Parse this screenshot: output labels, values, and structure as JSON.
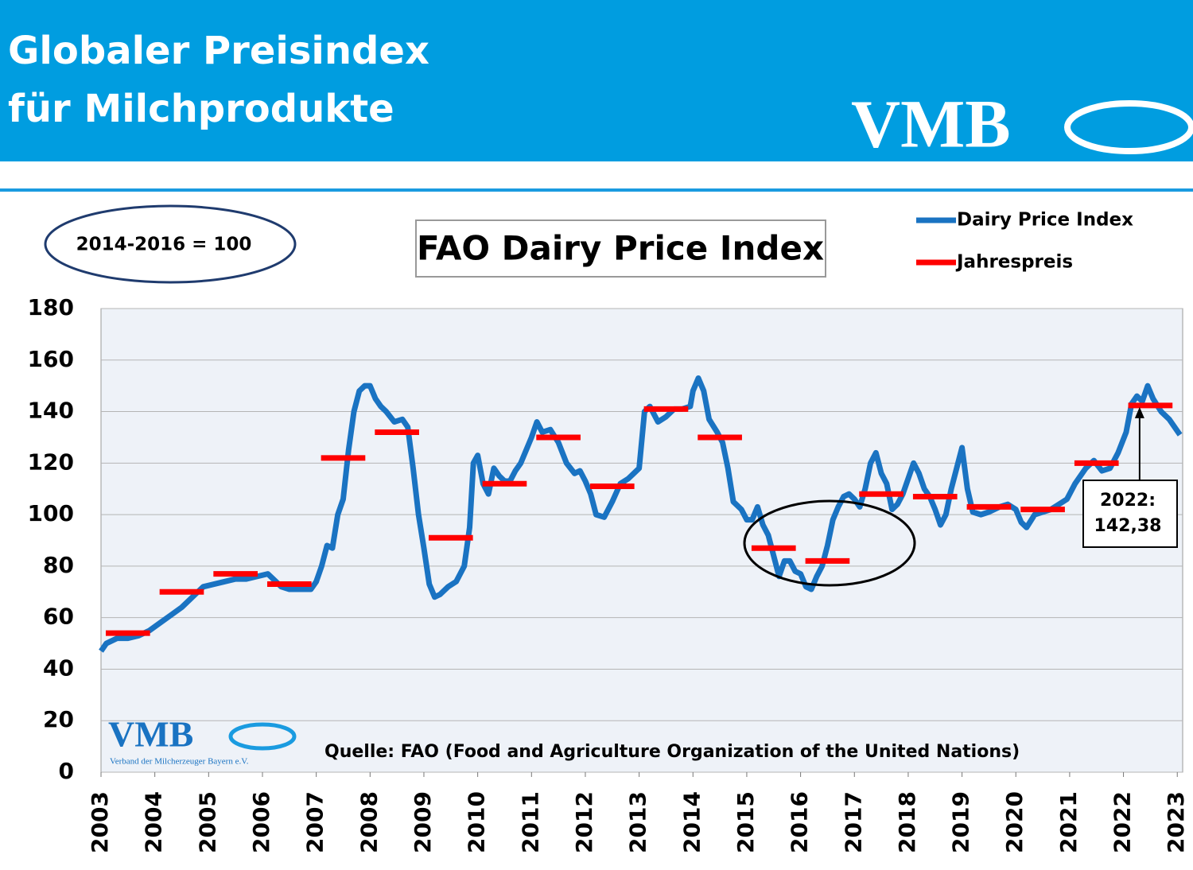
{
  "header": {
    "title_lines": [
      "Globaler Preisindex",
      "für Milchprodukte"
    ],
    "logo": "VMB"
  },
  "chart_data": {
    "type": "line",
    "title": "FAO Dairy Price Index",
    "base_note": "2014-2016 = 100",
    "source": "Quelle: FAO (Food and Agriculture Organization of the United Nations)",
    "watermark": {
      "logo": "VMB",
      "subtitle": "Verband der Milcherzeuger Bayern e.V."
    },
    "annotation": {
      "lines": [
        "2022:",
        "142,38"
      ],
      "x": 2022.3,
      "value": 142.38
    },
    "xlim": [
      2003,
      2023.1
    ],
    "xticks": [
      2003,
      2004,
      2005,
      2006,
      2007,
      2008,
      2009,
      2010,
      2011,
      2012,
      2013,
      2014,
      2015,
      2016,
      2017,
      2018,
      2019,
      2020,
      2021,
      2022,
      2023
    ],
    "ylim": [
      0,
      180
    ],
    "yticks": [
      0,
      20,
      40,
      60,
      80,
      100,
      120,
      140,
      160,
      180
    ],
    "grid": true,
    "series": [
      {
        "name": "Dairy Price Index",
        "color": "#1a73c2",
        "style": "line",
        "x": [
          2003.0,
          2003.1,
          2003.3,
          2003.5,
          2003.7,
          2003.9,
          2004.1,
          2004.3,
          2004.5,
          2004.7,
          2004.9,
          2005.1,
          2005.3,
          2005.5,
          2005.7,
          2005.9,
          2006.1,
          2006.2,
          2006.35,
          2006.5,
          2006.7,
          2006.9,
          2007.0,
          2007.1,
          2007.2,
          2007.3,
          2007.4,
          2007.5,
          2007.6,
          2007.7,
          2007.8,
          2007.9,
          2008.0,
          2008.1,
          2008.2,
          2008.3,
          2008.45,
          2008.6,
          2008.7,
          2008.8,
          2008.9,
          2009.0,
          2009.1,
          2009.2,
          2009.3,
          2009.45,
          2009.6,
          2009.75,
          2009.85,
          2009.92,
          2010.0,
          2010.1,
          2010.2,
          2010.3,
          2010.4,
          2010.5,
          2010.6,
          2010.7,
          2010.8,
          2010.9,
          2011.0,
          2011.1,
          2011.2,
          2011.35,
          2011.5,
          2011.65,
          2011.8,
          2011.9,
          2012.0,
          2012.1,
          2012.2,
          2012.35,
          2012.5,
          2012.65,
          2012.8,
          2012.9,
          2013.0,
          2013.1,
          2013.2,
          2013.35,
          2013.5,
          2013.65,
          2013.8,
          2013.95,
          2014.0,
          2014.1,
          2014.2,
          2014.3,
          2014.45,
          2014.55,
          2014.65,
          2014.75,
          2014.9,
          2015.0,
          2015.1,
          2015.2,
          2015.3,
          2015.4,
          2015.5,
          2015.6,
          2015.7,
          2015.8,
          2015.9,
          2016.0,
          2016.1,
          2016.2,
          2016.3,
          2016.4,
          2016.5,
          2016.6,
          2016.7,
          2016.8,
          2016.9,
          2017.0,
          2017.1,
          2017.2,
          2017.3,
          2017.4,
          2017.5,
          2017.6,
          2017.7,
          2017.8,
          2017.9,
          2018.0,
          2018.1,
          2018.2,
          2018.3,
          2018.4,
          2018.5,
          2018.6,
          2018.7,
          2018.8,
          2018.9,
          2019.0,
          2019.1,
          2019.2,
          2019.35,
          2019.5,
          2019.7,
          2019.85,
          2020.0,
          2020.1,
          2020.2,
          2020.35,
          2020.5,
          2020.65,
          2020.8,
          2020.95,
          2021.1,
          2021.3,
          2021.45,
          2021.6,
          2021.75,
          2021.9,
          2022.05,
          2022.15,
          2022.25,
          2022.35,
          2022.45,
          2022.55,
          2022.7,
          2022.85,
          2022.95,
          2023.05
        ],
        "values": [
          47,
          50,
          52,
          52,
          53,
          55,
          58,
          61,
          64,
          68,
          72,
          73,
          74,
          75,
          75,
          76,
          77,
          75,
          72,
          71,
          71,
          71,
          74,
          80,
          88,
          87,
          100,
          106,
          125,
          140,
          148,
          150,
          150,
          145,
          142,
          140,
          136,
          137,
          134,
          118,
          100,
          87,
          73,
          68,
          69,
          72,
          74,
          80,
          95,
          120,
          123,
          112,
          108,
          118,
          115,
          113,
          113,
          117,
          120,
          125,
          130,
          136,
          132,
          133,
          128,
          120,
          116,
          117,
          113,
          108,
          100,
          99,
          105,
          112,
          114,
          116,
          118,
          140,
          142,
          136,
          138,
          141,
          141,
          142,
          148,
          153,
          148,
          137,
          132,
          128,
          118,
          105,
          102,
          98,
          98,
          103,
          96,
          92,
          84,
          76,
          82,
          82,
          78,
          77,
          72,
          71,
          76,
          80,
          88,
          98,
          103,
          107,
          108,
          106,
          103,
          110,
          120,
          124,
          116,
          112,
          102,
          104,
          108,
          114,
          120,
          116,
          110,
          107,
          102,
          96,
          100,
          110,
          118,
          126,
          110,
          101,
          100,
          101,
          103,
          104,
          102,
          97,
          95,
          100,
          101,
          102,
          104,
          106,
          112,
          118,
          121,
          117,
          118,
          124,
          132,
          143,
          146,
          144,
          150,
          145,
          140,
          137,
          134,
          131
        ]
      },
      {
        "name": "Jahrespreis",
        "color": "#ff0000",
        "style": "annual",
        "x": [
          2003,
          2004,
          2005,
          2006,
          2007,
          2008,
          2009,
          2010,
          2011,
          2012,
          2013,
          2014,
          2015,
          2016,
          2017,
          2018,
          2019,
          2020,
          2021,
          2022
        ],
        "values": [
          54,
          70,
          77,
          73,
          122,
          132,
          91,
          112,
          130,
          111,
          141,
          130,
          87,
          82,
          108,
          107,
          103,
          102,
          120,
          142.38
        ]
      }
    ]
  }
}
